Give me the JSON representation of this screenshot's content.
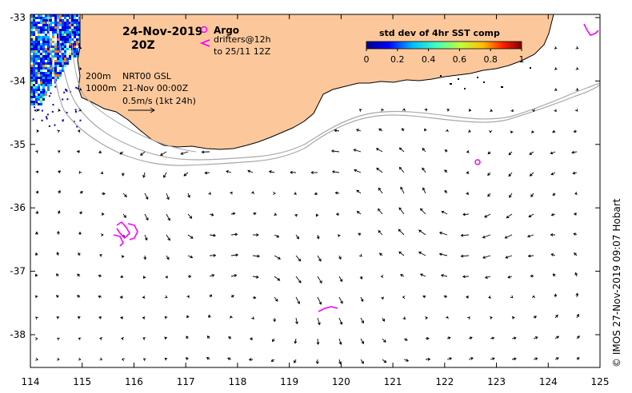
{
  "header": {
    "date": "24-Nov-2019",
    "hour": "20Z"
  },
  "legend_argo": {
    "label": "Argo",
    "drifters_line1": "drifters@12h",
    "drifters_line2": "to 25/11 12Z",
    "argo_color": "#ff00ff",
    "drifter_color": "#ff00ff"
  },
  "colorbar": {
    "title": "std dev of 4hr SST comp",
    "ticks": [
      "0",
      "0.2",
      "0.4",
      "0.6",
      "0.8",
      "1"
    ],
    "stops": [
      "#00008f",
      "#0000ff",
      "#00bfff",
      "#40ffbf",
      "#bfff40",
      "#ffbf00",
      "#ff2000",
      "#800000"
    ]
  },
  "info": {
    "isobath_200": "200m",
    "isobath_1000": "1000m",
    "product": "NRT00 GSL",
    "product_date": "21-Nov 00:00Z",
    "scale": "0.5m/s (1kt 24h)"
  },
  "axes": {
    "x_ticks": [
      "114",
      "115",
      "116",
      "117",
      "118",
      "119",
      "120",
      "121",
      "122",
      "123",
      "124",
      "125"
    ],
    "y_ticks": [
      "-33",
      "-34",
      "-35",
      "-36",
      "-37",
      "-38"
    ]
  },
  "credit": "© IMOS 27-Nov-2019 09:07 Hobart",
  "colors": {
    "land": "#fcc89b",
    "isobath": "#a8a8a8",
    "marker": "#ff00ff"
  }
}
